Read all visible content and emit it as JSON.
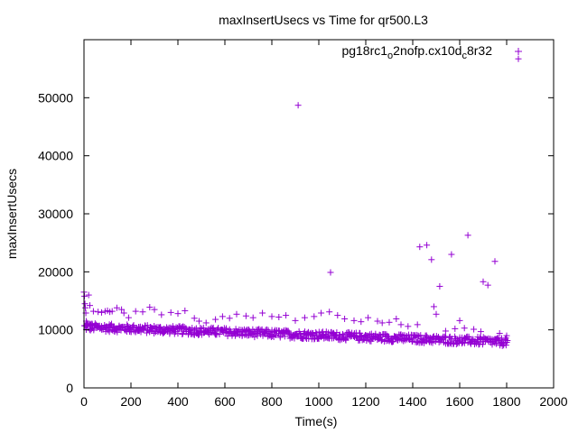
{
  "chart_data": {
    "type": "scatter",
    "title": "maxInsertUsecs vs Time for qr500.L3",
    "xlabel": "Time(s)",
    "ylabel": "maxInsertUsecs",
    "xlim": [
      0,
      2000
    ],
    "ylim": [
      0,
      60000
    ],
    "x_ticks": [
      0,
      200,
      400,
      600,
      800,
      1000,
      1200,
      1400,
      1600,
      1800,
      2000
    ],
    "y_ticks": [
      0,
      10000,
      20000,
      30000,
      40000,
      50000
    ],
    "x_tick_labels": [
      "0",
      "200",
      "400",
      "600",
      "800",
      "1000",
      "1200",
      "1400",
      "1600",
      "1800",
      "2000"
    ],
    "y_tick_labels": [
      "0",
      "10000",
      "20000",
      "30000",
      "40000",
      "50000"
    ],
    "grid": false,
    "legend_position": "top-right",
    "marker": "plus",
    "series": [
      {
        "name": "pg18rc1_o2nofp.cx10d_c8r32",
        "name_parts": [
          {
            "text": "pg18rc1",
            "sub": false
          },
          {
            "text": "o",
            "sub": true
          },
          {
            "text": "2nofp.cx10d",
            "sub": false
          },
          {
            "text": "c",
            "sub": true
          },
          {
            "text": "8r32",
            "sub": false
          }
        ],
        "color": "#9400d3",
        "baseline": {
          "x_start": 0,
          "x_end": 1800,
          "x_step": 5,
          "y_start": 10500,
          "y_end": 7900,
          "spread": 700
        },
        "points": [
          [
            0,
            16500
          ],
          [
            2,
            15800
          ],
          [
            4,
            14500
          ],
          [
            6,
            13800
          ],
          [
            8,
            12900
          ],
          [
            10,
            11500
          ],
          [
            12,
            11200
          ],
          [
            15,
            10900
          ],
          [
            20,
            16000
          ],
          [
            25,
            14200
          ],
          [
            30,
            11000
          ],
          [
            40,
            13200
          ],
          [
            50,
            10700
          ],
          [
            60,
            13100
          ],
          [
            75,
            13000
          ],
          [
            90,
            13200
          ],
          [
            100,
            13300
          ],
          [
            110,
            13100
          ],
          [
            120,
            13200
          ],
          [
            140,
            13800
          ],
          [
            160,
            13500
          ],
          [
            170,
            12900
          ],
          [
            190,
            12100
          ],
          [
            220,
            13200
          ],
          [
            250,
            13100
          ],
          [
            280,
            13900
          ],
          [
            300,
            13500
          ],
          [
            330,
            12600
          ],
          [
            370,
            13000
          ],
          [
            400,
            12800
          ],
          [
            430,
            13300
          ],
          [
            470,
            12000
          ],
          [
            490,
            11500
          ],
          [
            520,
            11200
          ],
          [
            560,
            11800
          ],
          [
            590,
            12300
          ],
          [
            620,
            12000
          ],
          [
            650,
            12700
          ],
          [
            690,
            12400
          ],
          [
            720,
            12100
          ],
          [
            760,
            12900
          ],
          [
            800,
            12300
          ],
          [
            830,
            12200
          ],
          [
            860,
            12500
          ],
          [
            900,
            11600
          ],
          [
            912,
            48700
          ],
          [
            940,
            12100
          ],
          [
            980,
            12300
          ],
          [
            1010,
            12900
          ],
          [
            1045,
            13100
          ],
          [
            1050,
            19900
          ],
          [
            1080,
            12500
          ],
          [
            1110,
            11900
          ],
          [
            1150,
            11600
          ],
          [
            1180,
            11400
          ],
          [
            1210,
            12100
          ],
          [
            1250,
            11500
          ],
          [
            1270,
            11200
          ],
          [
            1300,
            11300
          ],
          [
            1330,
            11900
          ],
          [
            1350,
            10900
          ],
          [
            1380,
            10600
          ],
          [
            1420,
            10900
          ],
          [
            1430,
            24300
          ],
          [
            1460,
            24600
          ],
          [
            1480,
            22100
          ],
          [
            1490,
            14000
          ],
          [
            1500,
            12700
          ],
          [
            1515,
            17500
          ],
          [
            1540,
            9800
          ],
          [
            1565,
            23000
          ],
          [
            1580,
            10200
          ],
          [
            1600,
            11600
          ],
          [
            1620,
            10300
          ],
          [
            1635,
            26300
          ],
          [
            1660,
            10100
          ],
          [
            1690,
            9700
          ],
          [
            1700,
            18300
          ],
          [
            1720,
            17700
          ],
          [
            1750,
            21800
          ],
          [
            1770,
            9400
          ],
          [
            1800,
            9000
          ],
          [
            1850,
            56700
          ]
        ]
      }
    ]
  }
}
